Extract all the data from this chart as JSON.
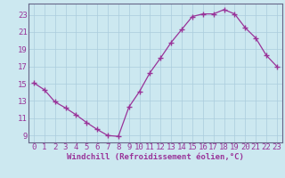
{
  "x": [
    0,
    1,
    2,
    3,
    4,
    5,
    6,
    7,
    8,
    9,
    10,
    11,
    12,
    13,
    14,
    15,
    16,
    17,
    18,
    19,
    20,
    21,
    22,
    23
  ],
  "y": [
    15.1,
    14.3,
    12.9,
    12.2,
    11.4,
    10.5,
    9.7,
    9.0,
    8.9,
    12.3,
    14.1,
    16.3,
    18.0,
    19.8,
    21.3,
    22.8,
    23.1,
    23.1,
    23.6,
    23.1,
    21.5,
    20.3,
    18.3,
    17.0
  ],
  "line_color": "#993399",
  "marker": "+",
  "bg_color": "#cce8f0",
  "grid_color": "#aaccdd",
  "xlabel": "Windchill (Refroidissement éolien,°C)",
  "yticks": [
    9,
    11,
    13,
    15,
    17,
    19,
    21,
    23
  ],
  "xticks": [
    0,
    1,
    2,
    3,
    4,
    5,
    6,
    7,
    8,
    9,
    10,
    11,
    12,
    13,
    14,
    15,
    16,
    17,
    18,
    19,
    20,
    21,
    22,
    23
  ],
  "ylim": [
    8.2,
    24.3
  ],
  "xlim": [
    -0.5,
    23.5
  ],
  "xlabel_fontsize": 6.5,
  "tick_fontsize": 6.5,
  "label_color": "#993399",
  "spine_color": "#666688",
  "linewidth": 0.9,
  "markersize": 4.5,
  "markeredgewidth": 1.0
}
